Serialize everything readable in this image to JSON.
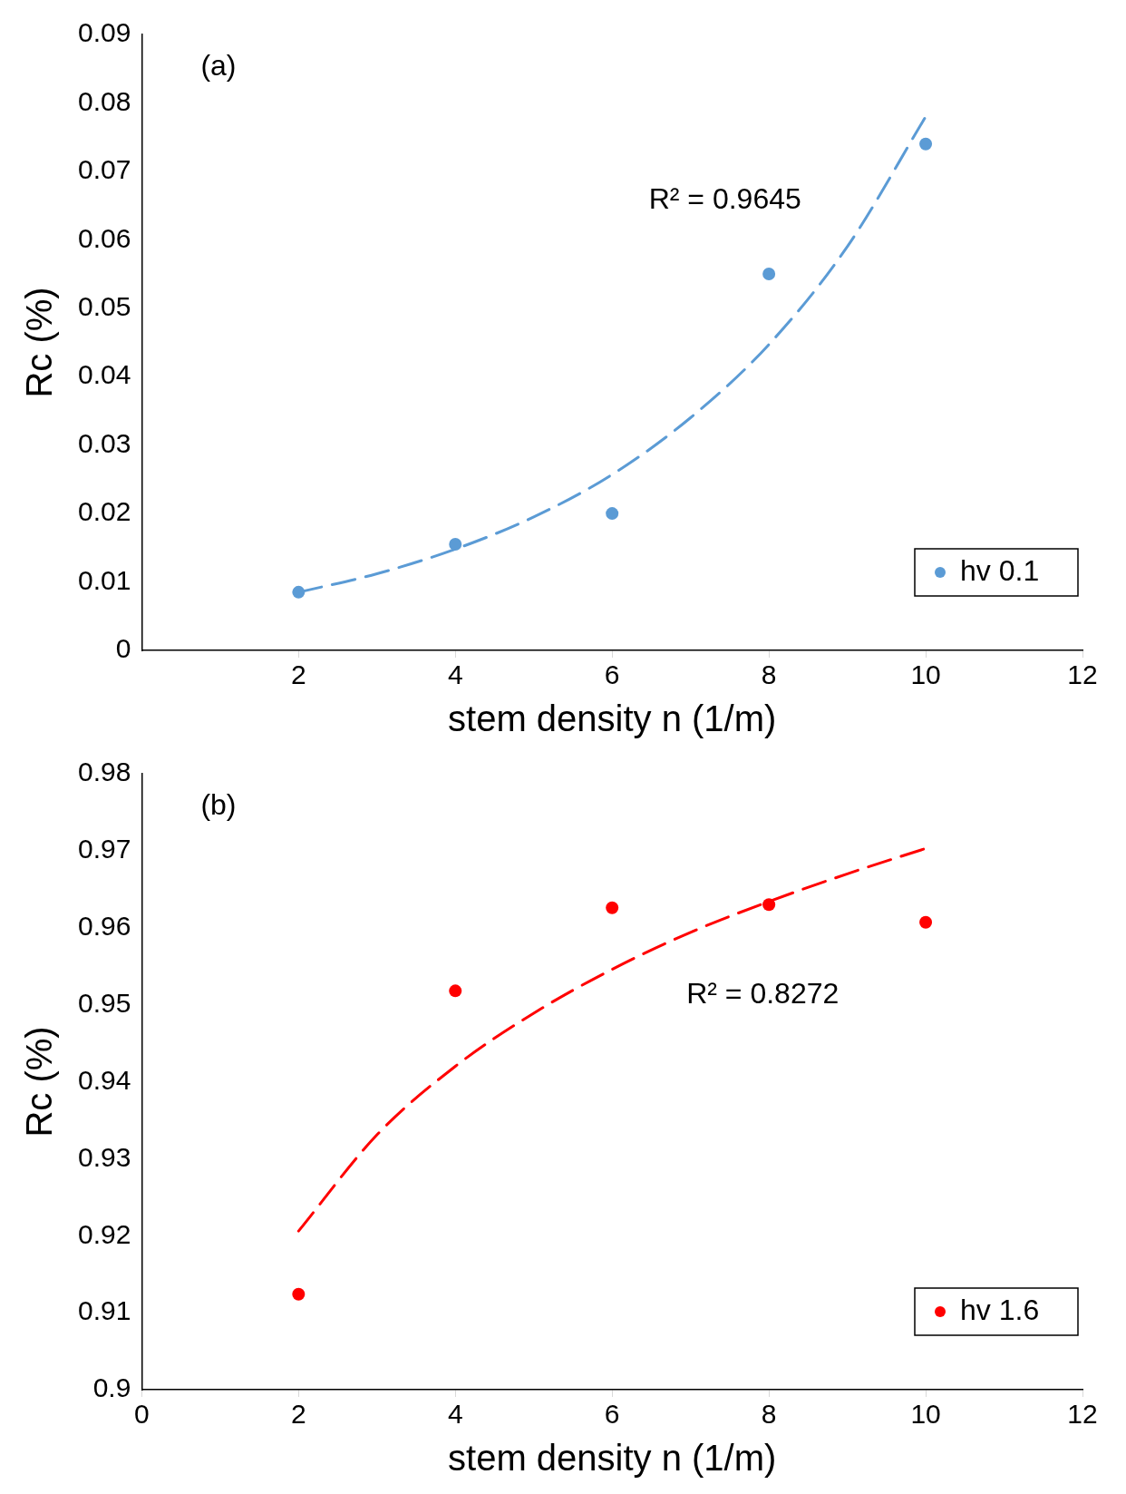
{
  "chart_data": [
    {
      "type": "scatter",
      "x": [
        2,
        4,
        6,
        8,
        10
      ],
      "xlabel": "stem density n (1/m)",
      "ylabel": "Rc (%)",
      "xlim": [
        0,
        12
      ],
      "xticks": [
        2,
        4,
        6,
        8,
        10,
        12
      ],
      "ylim": [
        0,
        0.09
      ],
      "yticks": [
        0,
        0.01,
        0.02,
        0.03,
        0.04,
        0.05,
        0.06,
        0.07,
        0.08,
        0.09
      ],
      "grid": false,
      "legend": "bottom right",
      "annotations": [
        "(a)",
        "R² = 0.9645"
      ],
      "series": [
        {
          "name": "hv 0.1",
          "color": "#5b9bd5",
          "marker": "circle",
          "values": [
            0.0085,
            0.0155,
            0.02,
            0.055,
            0.074
          ]
        },
        {
          "type": "line",
          "color": "#5b9bd5",
          "marker": "none",
          "line_style": "dashed",
          "x": [
            2,
            3,
            4,
            5,
            6,
            7,
            8,
            9,
            10
          ],
          "values": [
            0.0085,
            0.0112,
            0.0148,
            0.0195,
            0.0257,
            0.034,
            0.0447,
            0.059,
            0.078
          ]
        }
      ]
    },
    {
      "type": "scatter",
      "x": [
        2,
        4,
        6,
        8,
        10
      ],
      "xlabel": "stem density n (1/m)",
      "ylabel": "Rc (%)",
      "xlim": [
        0,
        12
      ],
      "xticks": [
        0,
        2,
        4,
        6,
        8,
        10,
        12
      ],
      "ylim": [
        0.9,
        0.98
      ],
      "yticks": [
        0.9,
        0.91,
        0.92,
        0.93,
        0.94,
        0.95,
        0.96,
        0.97,
        0.98
      ],
      "grid": false,
      "legend": "bottom right",
      "annotations": [
        "(b)",
        "R² = 0.8272"
      ],
      "series": [
        {
          "name": "hv 1.6",
          "color": "#ff0000",
          "marker": "circle",
          "values": [
            0.9124,
            0.9518,
            0.9626,
            0.963,
            0.9607
          ]
        },
        {
          "type": "line",
          "color": "#ff0000",
          "marker": "none",
          "line_style": "dashed",
          "x": [
            2,
            3,
            4,
            5,
            6,
            7,
            8,
            9,
            10
          ],
          "values": [
            0.9206,
            0.9331,
            0.942,
            0.9489,
            0.9546,
            0.9594,
            0.9634,
            0.967,
            0.9703
          ]
        }
      ]
    }
  ]
}
